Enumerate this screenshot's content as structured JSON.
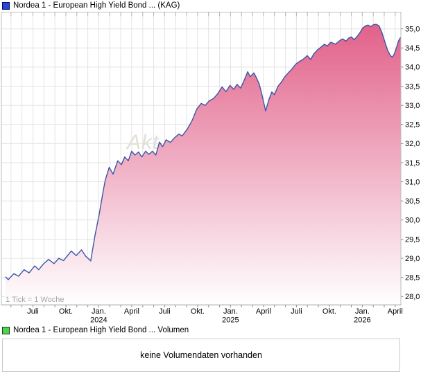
{
  "price_panel": {
    "title": "Nordea 1 - European High Yield Bond ... (KAG)",
    "marker_color": "#2448cf",
    "tick_note": "1 Tick = 1 Woche"
  },
  "volume_panel": {
    "title": "Nordea 1 - European High Yield Bond ... Volumen",
    "marker_color": "#52d052",
    "empty_message": "keine Volumendaten vorhanden"
  },
  "chart_data": {
    "type": "area",
    "title": "Nordea 1 - European High Yield Bond ... (KAG)",
    "watermark": "Akt",
    "grid": true,
    "legend_position": "top-left",
    "x_axis": {
      "unit_note": "1 Tick = 1 Woche",
      "range": [
        "2023-04",
        "2026-04"
      ],
      "ticks": [
        {
          "label": "Juli"
        },
        {
          "label": "Okt."
        },
        {
          "label": "Jan.",
          "year": "2024"
        },
        {
          "label": "April"
        },
        {
          "label": "Juli"
        },
        {
          "label": "Okt."
        },
        {
          "label": "Jan.",
          "year": "2025"
        },
        {
          "label": "April"
        },
        {
          "label": "Juli"
        },
        {
          "label": "Okt."
        },
        {
          "label": "Jan.",
          "year": "2026"
        },
        {
          "label": "April"
        }
      ]
    },
    "y_axis": {
      "side": "right",
      "min": 28.0,
      "max": 35.0,
      "step": 0.5,
      "labels": [
        "35,0",
        "34,5",
        "34,0",
        "33,5",
        "33,0",
        "32,5",
        "32,0",
        "31,5",
        "31,0",
        "30,5",
        "30,0",
        "29,5",
        "29,0",
        "28,5",
        "28,0"
      ]
    },
    "ylim": [
      27.8,
      35.4
    ],
    "series": [
      {
        "name": "Nordea 1 - European High Yield Bond ... (KAG)",
        "line_color": "#3a56a6",
        "fill_top_color": "#e05a85",
        "fill_bottom_color": "#ffffff",
        "points": [
          [
            "2023-04-16",
            28.52
          ],
          [
            "2023-04-24",
            28.44
          ],
          [
            "2023-05-09",
            28.6
          ],
          [
            "2023-05-22",
            28.53
          ],
          [
            "2023-06-07",
            28.7
          ],
          [
            "2023-06-21",
            28.62
          ],
          [
            "2023-07-06",
            28.8
          ],
          [
            "2023-07-17",
            28.7
          ],
          [
            "2023-07-30",
            28.85
          ],
          [
            "2023-08-14",
            28.97
          ],
          [
            "2023-08-29",
            28.86
          ],
          [
            "2023-09-12",
            29.0
          ],
          [
            "2023-09-25",
            28.94
          ],
          [
            "2023-10-16",
            29.19
          ],
          [
            "2023-10-30",
            29.07
          ],
          [
            "2023-11-14",
            29.22
          ],
          [
            "2023-11-26",
            29.05
          ],
          [
            "2023-12-09",
            28.93
          ],
          [
            "2023-12-21",
            29.6
          ],
          [
            "2024-01-02",
            30.15
          ],
          [
            "2024-01-12",
            30.7
          ],
          [
            "2024-01-19",
            31.05
          ],
          [
            "2024-01-30",
            31.38
          ],
          [
            "2024-02-10",
            31.2
          ],
          [
            "2024-02-23",
            31.55
          ],
          [
            "2024-03-03",
            31.45
          ],
          [
            "2024-03-12",
            31.65
          ],
          [
            "2024-03-22",
            31.55
          ],
          [
            "2024-04-01",
            31.8
          ],
          [
            "2024-04-10",
            31.7
          ],
          [
            "2024-04-20",
            31.78
          ],
          [
            "2024-04-29",
            31.65
          ],
          [
            "2024-05-09",
            31.8
          ],
          [
            "2024-05-18",
            31.72
          ],
          [
            "2024-05-28",
            31.8
          ],
          [
            "2024-06-07",
            31.7
          ],
          [
            "2024-06-17",
            32.04
          ],
          [
            "2024-06-26",
            31.92
          ],
          [
            "2024-07-05",
            32.1
          ],
          [
            "2024-07-17",
            32.03
          ],
          [
            "2024-07-28",
            32.15
          ],
          [
            "2024-08-10",
            32.25
          ],
          [
            "2024-08-19",
            32.2
          ],
          [
            "2024-09-03",
            32.38
          ],
          [
            "2024-09-16",
            32.6
          ],
          [
            "2024-09-29",
            32.9
          ],
          [
            "2024-10-11",
            33.05
          ],
          [
            "2024-10-22",
            33.0
          ],
          [
            "2024-11-03",
            33.12
          ],
          [
            "2024-11-15",
            33.18
          ],
          [
            "2024-11-26",
            33.3
          ],
          [
            "2024-12-08",
            33.48
          ],
          [
            "2024-12-19",
            33.36
          ],
          [
            "2024-12-30",
            33.52
          ],
          [
            "2025-01-10",
            33.42
          ],
          [
            "2025-01-19",
            33.55
          ],
          [
            "2025-01-29",
            33.45
          ],
          [
            "2025-02-08",
            33.65
          ],
          [
            "2025-02-18",
            33.88
          ],
          [
            "2025-02-25",
            33.75
          ],
          [
            "2025-03-05",
            33.85
          ],
          [
            "2025-03-13",
            33.7
          ],
          [
            "2025-03-20",
            33.55
          ],
          [
            "2025-03-28",
            33.25
          ],
          [
            "2025-04-07",
            32.85
          ],
          [
            "2025-04-16",
            33.15
          ],
          [
            "2025-04-24",
            33.35
          ],
          [
            "2025-05-01",
            33.28
          ],
          [
            "2025-05-11",
            33.5
          ],
          [
            "2025-05-21",
            33.62
          ],
          [
            "2025-05-30",
            33.75
          ],
          [
            "2025-06-09",
            33.85
          ],
          [
            "2025-06-19",
            33.95
          ],
          [
            "2025-06-30",
            34.08
          ],
          [
            "2025-07-10",
            34.15
          ],
          [
            "2025-07-19",
            34.2
          ],
          [
            "2025-07-31",
            34.3
          ],
          [
            "2025-08-10",
            34.2
          ],
          [
            "2025-08-19",
            34.35
          ],
          [
            "2025-08-29",
            34.45
          ],
          [
            "2025-09-08",
            34.52
          ],
          [
            "2025-09-18",
            34.6
          ],
          [
            "2025-09-25",
            34.55
          ],
          [
            "2025-10-05",
            34.65
          ],
          [
            "2025-10-18",
            34.6
          ],
          [
            "2025-10-28",
            34.68
          ],
          [
            "2025-11-07",
            34.74
          ],
          [
            "2025-11-17",
            34.68
          ],
          [
            "2025-11-24",
            34.76
          ],
          [
            "2025-12-01",
            34.79
          ],
          [
            "2025-12-09",
            34.72
          ],
          [
            "2025-12-17",
            34.8
          ],
          [
            "2025-12-25",
            34.9
          ],
          [
            "2026-01-02",
            35.02
          ],
          [
            "2026-01-10",
            35.08
          ],
          [
            "2026-01-17",
            35.1
          ],
          [
            "2026-01-25",
            35.06
          ],
          [
            "2026-02-02",
            35.11
          ],
          [
            "2026-02-09",
            35.12
          ],
          [
            "2026-02-17",
            35.08
          ],
          [
            "2026-02-25",
            34.9
          ],
          [
            "2026-03-03",
            34.65
          ],
          [
            "2026-03-10",
            34.45
          ],
          [
            "2026-03-18",
            34.3
          ],
          [
            "2026-03-24",
            34.26
          ],
          [
            "2026-03-29",
            34.35
          ],
          [
            "2026-04-05",
            34.52
          ],
          [
            "2026-04-10",
            34.68
          ],
          [
            "2026-04-16",
            34.78
          ]
        ]
      }
    ]
  }
}
